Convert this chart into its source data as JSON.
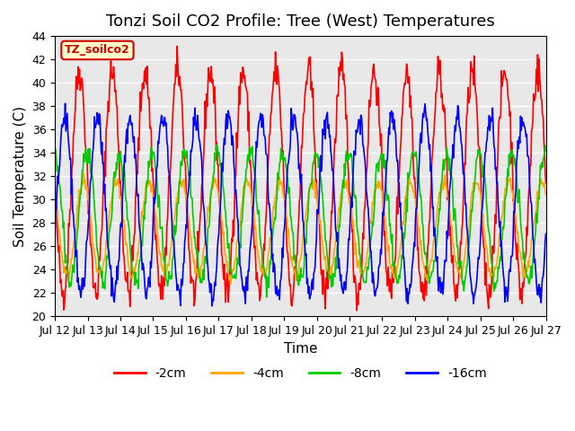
{
  "title": "Tonzi Soil CO2 Profile: Tree (West) Temperatures",
  "xlabel": "Time",
  "ylabel": "Soil Temperature (C)",
  "ylim": [
    20,
    44
  ],
  "xlim": [
    0,
    15
  ],
  "x_tick_labels": [
    "Jul 12",
    "Jul 13",
    "Jul 14",
    "Jul 15",
    "Jul 16",
    "Jul 17",
    "Jul 18",
    "Jul 19",
    "Jul 20",
    "Jul 21",
    "Jul 22",
    "Jul 23",
    "Jul 24",
    "Jul 25",
    "Jul 26",
    "Jul 27"
  ],
  "series": [
    {
      "label": "-2cm",
      "color": "#ff0000",
      "amplitude": 9.5,
      "baseline": 31.5,
      "phase": 0.0,
      "noise": 0.8
    },
    {
      "label": "-4cm",
      "color": "#ffa500",
      "amplitude": 4.0,
      "baseline": 27.5,
      "phase": 0.12,
      "noise": 0.3
    },
    {
      "label": "-8cm",
      "color": "#00cc00",
      "amplitude": 5.5,
      "baseline": 28.5,
      "phase": 0.22,
      "noise": 0.5
    },
    {
      "label": "-16cm",
      "color": "#0000ff",
      "amplitude": 7.5,
      "baseline": 29.5,
      "phase": 0.55,
      "noise": 0.6
    }
  ],
  "tag_label": "TZ_soilco2",
  "tag_bg": "#ffffcc",
  "tag_border": "#cc0000",
  "plot_bg": "#e8e8e8",
  "fig_bg": "#ffffff",
  "grid_color": "#ffffff",
  "title_fontsize": 13,
  "axis_label_fontsize": 11,
  "tick_fontsize": 9
}
